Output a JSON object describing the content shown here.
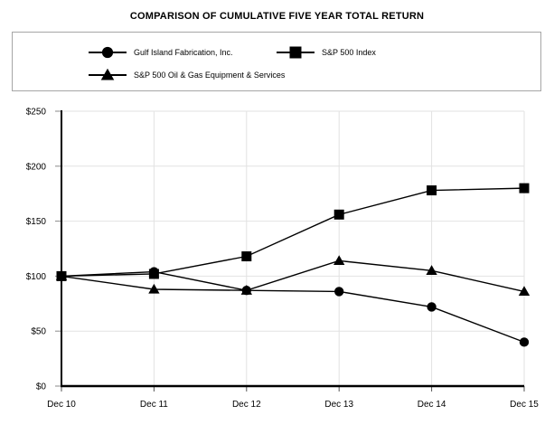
{
  "page": {
    "title": "COMPARISON OF CUMULATIVE FIVE YEAR TOTAL RETURN"
  },
  "chart_data": {
    "type": "line",
    "title": "COMPARISON OF CUMULATIVE FIVE YEAR TOTAL RETURN",
    "categories": [
      "Dec 10",
      "Dec 11",
      "Dec 12",
      "Dec 13",
      "Dec 14",
      "Dec 15"
    ],
    "series": [
      {
        "name": "Gulf Island Fabrication, Inc.",
        "marker": "circle",
        "values": [
          100,
          104,
          87,
          86,
          72,
          40
        ]
      },
      {
        "name": "S&P 500 Index",
        "marker": "square",
        "values": [
          100,
          102,
          118,
          156,
          178,
          180
        ]
      },
      {
        "name": "S&P 500 Oil & Gas Equipment & Services",
        "marker": "triangle",
        "values": [
          100,
          88,
          87,
          114,
          105,
          86
        ]
      }
    ],
    "xlabel": "",
    "ylabel": "",
    "ylim": [
      0,
      250
    ],
    "y_tick_values": [
      0,
      50,
      100,
      150,
      200,
      250
    ],
    "y_tick_labels": [
      "$0",
      "$50",
      "$100",
      "$150",
      "$200",
      "$250"
    ],
    "grid": true,
    "legend_position": "top-boxed",
    "colors": {
      "line": "#000000",
      "marker": "#000000",
      "grid": "#e2e2e2",
      "axis": "#000000",
      "tick": "#8a8a8a",
      "text": "#000000",
      "legend_border": "#a6a6a6",
      "background": "#ffffff"
    }
  }
}
